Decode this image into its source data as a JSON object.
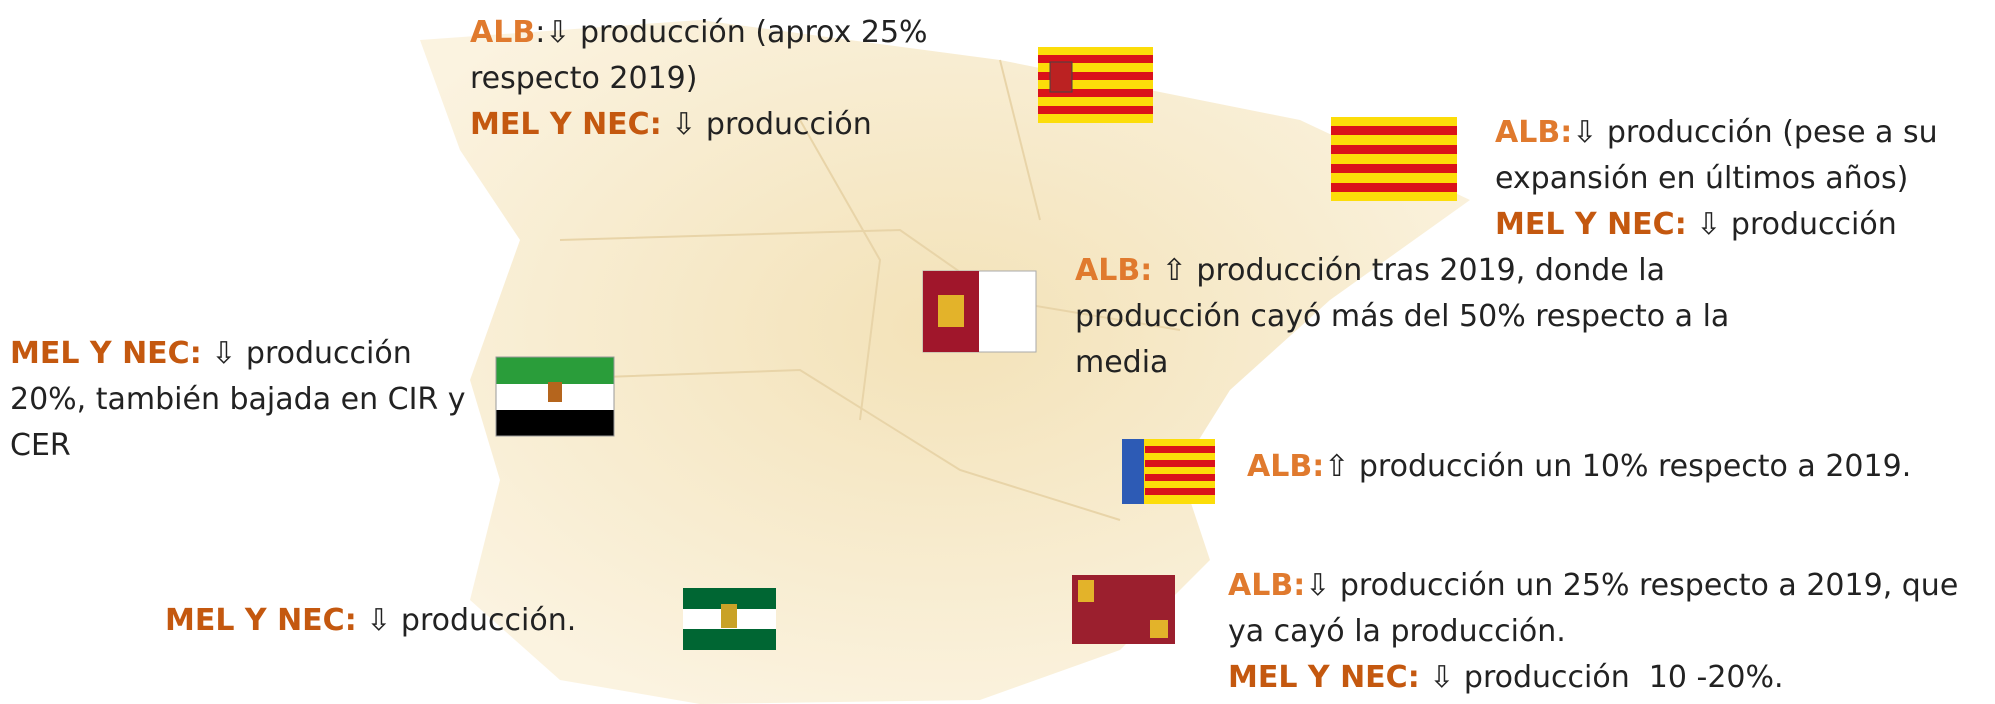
{
  "regions": [
    {
      "items": [
        {
          "label": "ALB",
          "text": ":⇩ producción (aprox 25% respecto 2019)"
        },
        {
          "label": "MEL Y NEC:",
          "text": " ⇩ producción"
        }
      ]
    },
    {
      "items": [
        {
          "label": "ALB:",
          "text": "⇩ producción (pese a su expansión en últimos años)"
        },
        {
          "label": "MEL Y NEC:",
          "text": " ⇩ producción"
        }
      ]
    },
    {
      "items": [
        {
          "label": "ALB:",
          "text": " ⇧ producción tras 2019, donde la producción cayó más del 50% respecto a la media"
        }
      ]
    },
    {
      "items": [
        {
          "label": "MEL Y NEC:",
          "text": " ⇩ producción 20%, también bajada en CIR y CER"
        }
      ]
    },
    {
      "items": [
        {
          "label": "ALB:",
          "text": "⇧ producción un 10% respecto a 2019."
        }
      ]
    },
    {
      "items": [
        {
          "label": "MEL Y NEC:",
          "text": " ⇩ producción."
        }
      ]
    },
    {
      "items": [
        {
          "label": "ALB:",
          "text": "⇩ producción un 25% respecto a 2019, que ya cayó la producción."
        },
        {
          "label": "MEL Y NEC:",
          "text": " ⇩ producción  10 -20%."
        }
      ]
    }
  ]
}
